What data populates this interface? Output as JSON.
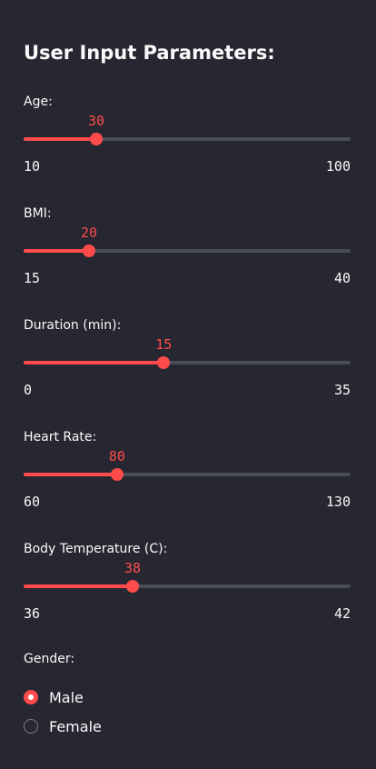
{
  "sidebar": {
    "title": "User Input Parameters:",
    "accent_color": "#ff4b4b",
    "sliders": [
      {
        "label": "Age:",
        "value": 30,
        "min": 10,
        "max": 100,
        "value_text": "30",
        "min_text": "10",
        "max_text": "100"
      },
      {
        "label": "BMI:",
        "value": 20,
        "min": 15,
        "max": 40,
        "value_text": "20",
        "min_text": "15",
        "max_text": "40"
      },
      {
        "label": "Duration (min):",
        "value": 15,
        "min": 0,
        "max": 35,
        "value_text": "15",
        "min_text": "0",
        "max_text": "35"
      },
      {
        "label": "Heart Rate:",
        "value": 80,
        "min": 60,
        "max": 130,
        "value_text": "80",
        "min_text": "60",
        "max_text": "130"
      },
      {
        "label": "Body Temperature (C):",
        "value": 38,
        "min": 36,
        "max": 42,
        "value_text": "38",
        "min_text": "36",
        "max_text": "42"
      }
    ],
    "gender": {
      "label": "Gender:",
      "selected": "Male",
      "options": [
        {
          "label": "Male",
          "checked": true
        },
        {
          "label": "Female",
          "checked": false
        }
      ]
    }
  }
}
